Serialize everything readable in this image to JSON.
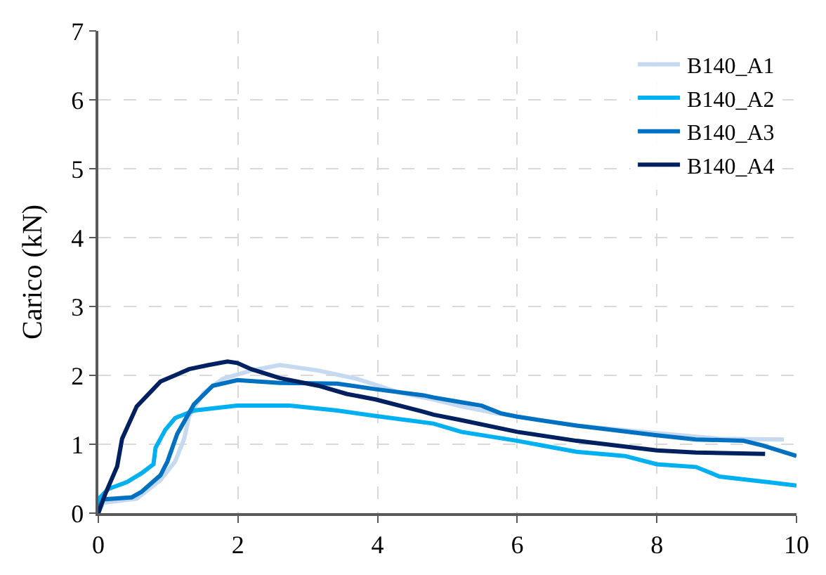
{
  "chart_data": {
    "type": "line",
    "ylabel": "Carico (kN)",
    "xlim": [
      0,
      10
    ],
    "ylim": [
      0,
      7
    ],
    "xticks": [
      0,
      2,
      4,
      6,
      8,
      10
    ],
    "yticks": [
      0,
      1,
      2,
      3,
      4,
      5,
      6,
      7
    ],
    "grid": true,
    "legend": "top right",
    "marker": "none",
    "line_style": "solid",
    "series": [
      {
        "name": "B140_A1",
        "color": "#c5d9f0",
        "x": [
          0,
          0.07,
          0.55,
          0.89,
          1.1,
          1.23,
          1.3,
          1.51,
          1.78,
          2.19,
          2.6,
          3.15,
          3.7,
          4.32,
          4.8,
          5.2,
          5.69,
          6.85,
          8,
          8.9,
          9.82
        ],
        "values": [
          0,
          0.15,
          0.21,
          0.48,
          0.75,
          1.08,
          1.41,
          1.75,
          1.95,
          2.07,
          2.15,
          2.07,
          1.95,
          1.75,
          1.65,
          1.55,
          1.45,
          1.27,
          1.16,
          1.08,
          1.07
        ]
      },
      {
        "name": "B140_A2",
        "color": "#00b0f0",
        "x": [
          0,
          0.01,
          0.14,
          0.41,
          0.62,
          0.79,
          0.82,
          0.96,
          1.1,
          1.37,
          1.99,
          2.74,
          3.42,
          3.97,
          4.8,
          5.2,
          6,
          6.85,
          7.54,
          8,
          8.56,
          8.9,
          9.6,
          10
        ],
        "values": [
          0,
          0.21,
          0.35,
          0.45,
          0.58,
          0.71,
          0.95,
          1.21,
          1.38,
          1.49,
          1.56,
          1.56,
          1.49,
          1.41,
          1.3,
          1.18,
          1.05,
          0.89,
          0.83,
          0.71,
          0.67,
          0.53,
          0.45,
          0.4
        ]
      },
      {
        "name": "B140_A3",
        "color": "#0070c0",
        "x": [
          0,
          0.07,
          0.48,
          0.62,
          0.89,
          0.99,
          1.13,
          1.37,
          1.64,
          1.99,
          2.6,
          3.42,
          3.97,
          4.66,
          4.8,
          5.2,
          5.49,
          5.76,
          6,
          6.85,
          8,
          8.56,
          9.24,
          9.52,
          10
        ],
        "values": [
          0.05,
          0.2,
          0.23,
          0.31,
          0.55,
          0.75,
          1.15,
          1.58,
          1.85,
          1.93,
          1.89,
          1.88,
          1.8,
          1.71,
          1.68,
          1.61,
          1.56,
          1.45,
          1.4,
          1.27,
          1.13,
          1.07,
          1.05,
          0.98,
          0.83
        ]
      },
      {
        "name": "B140_A4",
        "color": "#002060",
        "x": [
          0,
          0.1,
          0.27,
          0.34,
          0.55,
          0.89,
          1.3,
          1.58,
          1.85,
          1.99,
          2.19,
          2.6,
          3.15,
          3.56,
          3.97,
          4.66,
          4.8,
          5.2,
          6,
          6.85,
          8,
          8.56,
          9.55
        ],
        "values": [
          0,
          0.28,
          0.68,
          1.08,
          1.55,
          1.91,
          2.09,
          2.15,
          2.2,
          2.18,
          2.09,
          1.96,
          1.85,
          1.73,
          1.65,
          1.47,
          1.43,
          1.35,
          1.18,
          1.05,
          0.91,
          0.88,
          0.86
        ]
      }
    ]
  }
}
